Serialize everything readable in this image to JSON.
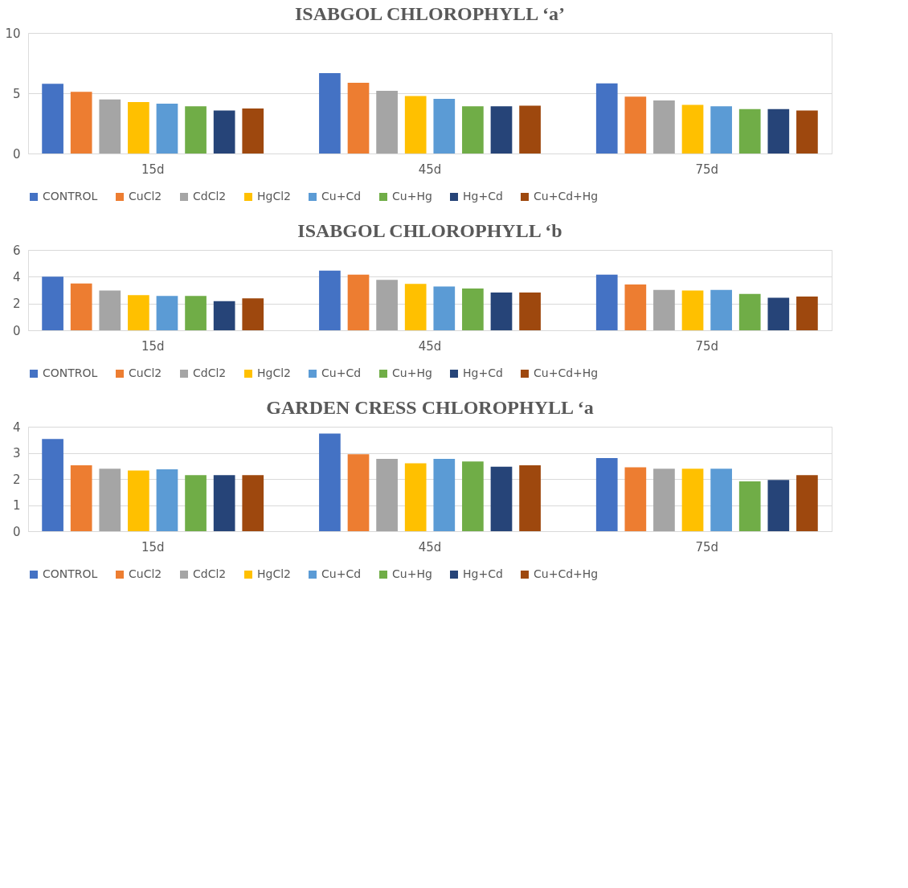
{
  "chart_data": [
    {
      "type": "bar",
      "title": "ISABGOL CHLOROPHYLL ‘a’",
      "categories": [
        "15d",
        "45d",
        "75d"
      ],
      "ylim": [
        0,
        10
      ],
      "yticks": [
        0,
        5,
        10
      ],
      "grid": "y",
      "legend": "bottom",
      "series": [
        {
          "name": "CONTROL",
          "color": "#4472c4",
          "values": [
            5.78,
            6.67,
            5.82
          ]
        },
        {
          "name": "CuCl2",
          "color": "#ed7d31",
          "values": [
            5.11,
            5.87,
            4.71
          ]
        },
        {
          "name": "CdCl2",
          "color": "#a5a5a5",
          "values": [
            4.49,
            5.2,
            4.4
          ]
        },
        {
          "name": "HgCl2",
          "color": "#ffc000",
          "values": [
            4.27,
            4.76,
            4.04
          ]
        },
        {
          "name": "Cu+Cd",
          "color": "#5b9bd5",
          "values": [
            4.13,
            4.53,
            3.91
          ]
        },
        {
          "name": "Cu+Hg",
          "color": "#70ad47",
          "values": [
            3.91,
            3.91,
            3.69
          ]
        },
        {
          "name": "Hg+Cd",
          "color": "#264478",
          "values": [
            3.56,
            3.91,
            3.69
          ]
        },
        {
          "name": "Cu+Cd+Hg",
          "color": "#9e480e",
          "values": [
            3.73,
            3.96,
            3.56
          ]
        }
      ]
    },
    {
      "type": "bar",
      "title": "ISABGOL CHLOROPHYLL  ‘b",
      "categories": [
        "15d",
        "45d",
        "75d"
      ],
      "ylim": [
        0,
        6
      ],
      "yticks": [
        0,
        2,
        4,
        6
      ],
      "grid": "y",
      "legend": "bottom",
      "series": [
        {
          "name": "CONTROL",
          "color": "#4472c4",
          "values": [
            4.0,
            4.45,
            4.16
          ]
        },
        {
          "name": "CuCl2",
          "color": "#ed7d31",
          "values": [
            3.5,
            4.16,
            3.42
          ]
        },
        {
          "name": "CdCl2",
          "color": "#a5a5a5",
          "values": [
            2.97,
            3.76,
            3.02
          ]
        },
        {
          "name": "HgCl2",
          "color": "#ffc000",
          "values": [
            2.62,
            3.47,
            2.97
          ]
        },
        {
          "name": "Cu+Cd",
          "color": "#5b9bd5",
          "values": [
            2.57,
            3.27,
            3.02
          ]
        },
        {
          "name": "Cu+Hg",
          "color": "#70ad47",
          "values": [
            2.57,
            3.12,
            2.72
          ]
        },
        {
          "name": "Hg+Cd",
          "color": "#264478",
          "values": [
            2.18,
            2.82,
            2.43
          ]
        },
        {
          "name": "Cu+Cd+Hg",
          "color": "#9e480e",
          "values": [
            2.38,
            2.82,
            2.52
          ]
        }
      ]
    },
    {
      "type": "bar",
      "title": "GARDEN CRESS CHLOROPHYLL  ‘a",
      "categories": [
        "15d",
        "45d",
        "75d"
      ],
      "ylim": [
        0,
        4
      ],
      "yticks": [
        0,
        1,
        2,
        3,
        4
      ],
      "grid": "y",
      "legend": "bottom",
      "series": [
        {
          "name": "CONTROL",
          "color": "#4472c4",
          "values": [
            3.53,
            3.74,
            2.8
          ]
        },
        {
          "name": "CuCl2",
          "color": "#ed7d31",
          "values": [
            2.52,
            2.95,
            2.45
          ]
        },
        {
          "name": "CdCl2",
          "color": "#a5a5a5",
          "values": [
            2.39,
            2.77,
            2.39
          ]
        },
        {
          "name": "HgCl2",
          "color": "#ffc000",
          "values": [
            2.32,
            2.6,
            2.39
          ]
        },
        {
          "name": "Cu+Cd",
          "color": "#5b9bd5",
          "values": [
            2.37,
            2.77,
            2.39
          ]
        },
        {
          "name": "Cu+Hg",
          "color": "#70ad47",
          "values": [
            2.15,
            2.67,
            1.91
          ]
        },
        {
          "name": "Hg+Cd",
          "color": "#264478",
          "values": [
            2.15,
            2.47,
            1.96
          ]
        },
        {
          "name": "Cu+Cd+Hg",
          "color": "#9e480e",
          "values": [
            2.15,
            2.52,
            2.15
          ]
        }
      ]
    }
  ]
}
